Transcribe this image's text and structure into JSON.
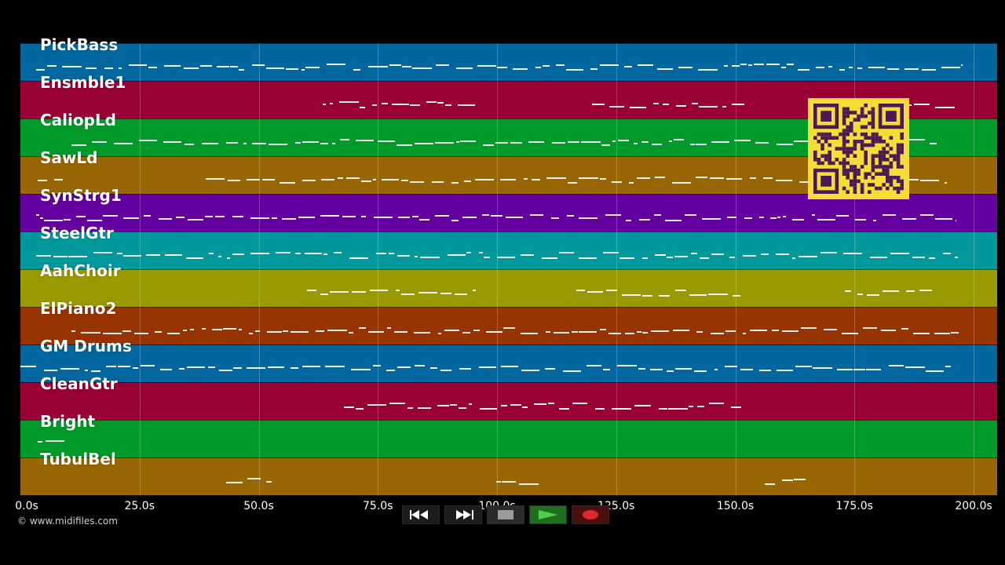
{
  "tracks": [
    {
      "name": "PickBass",
      "color": "#03679f"
    },
    {
      "name": "Ensmble1",
      "color": "#990033"
    },
    {
      "name": "CaliopLd",
      "color": "#009a2b"
    },
    {
      "name": "SawLd",
      "color": "#986602"
    },
    {
      "name": "SynStrg1",
      "color": "#6500a0"
    },
    {
      "name": "SteelGtr",
      "color": "#00989a"
    },
    {
      "name": "AahChoir",
      "color": "#999900"
    },
    {
      "name": "ElPiano2",
      "color": "#983402"
    },
    {
      "name": "GM Drums",
      "color": "#03679f"
    },
    {
      "name": "CleanGtr",
      "color": "#990033"
    },
    {
      "name": "Bright",
      "color": "#009a2b"
    },
    {
      "name": "TubulBel",
      "color": "#986602"
    }
  ],
  "timeline": {
    "ticks": [
      "0.0s",
      "25.0s",
      "50.0s",
      "75.0s",
      "100.0s",
      "125.0s",
      "150.0s",
      "175.0s",
      "200.0s"
    ]
  },
  "copyright": "© www.midifiles.com",
  "transport": {
    "rewind_icon": "rewind-icon",
    "fast_forward_icon": "fast-forward-icon",
    "stop_icon": "stop-icon",
    "play_icon": "play-icon",
    "record_icon": "record-icon",
    "play_color": "#4fd14f",
    "record_color": "#e0282a"
  },
  "qr_code": {
    "color": "#f5dd36",
    "ink": "#4b1a55"
  }
}
